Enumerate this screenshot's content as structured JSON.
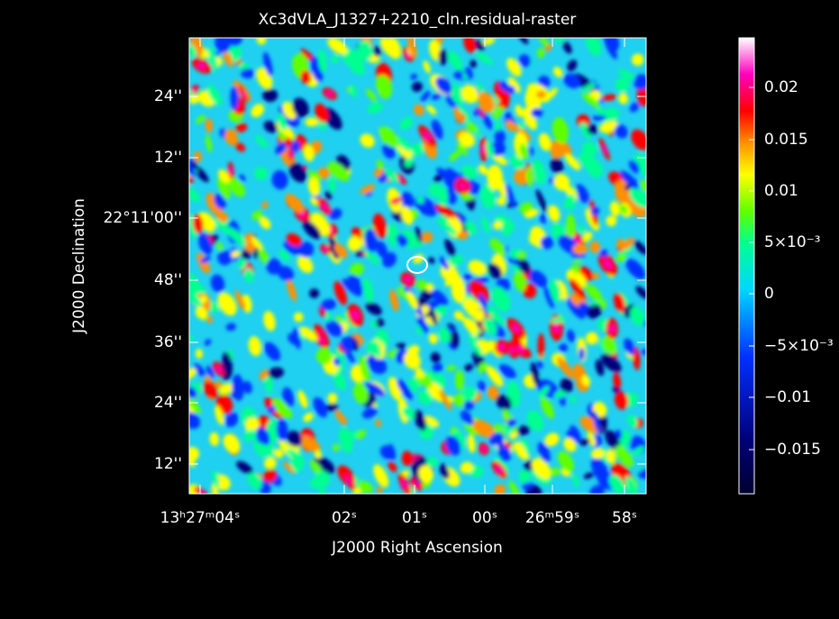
{
  "title": "Xc3dVLA_J1327+2210_cln.residual-raster",
  "x_axis": {
    "label": "J2000 Right Ascension",
    "ticks": [
      "13ʰ27ᵐ04ˢ",
      "02ˢ",
      "01ˢ",
      "00ˢ",
      "26ᵐ59ˢ",
      "58ˢ"
    ]
  },
  "y_axis": {
    "label": "J2000 Declination",
    "ticks": [
      "24''",
      "12''",
      "22°11'00''",
      "48''",
      "36''",
      "24''",
      "12''"
    ]
  },
  "colorbar": {
    "ticks": [
      "0.02",
      "0.015",
      "0.01",
      "5×10⁻³",
      "0",
      "−5×10⁻³",
      "−0.01",
      "−0.015"
    ]
  }
}
